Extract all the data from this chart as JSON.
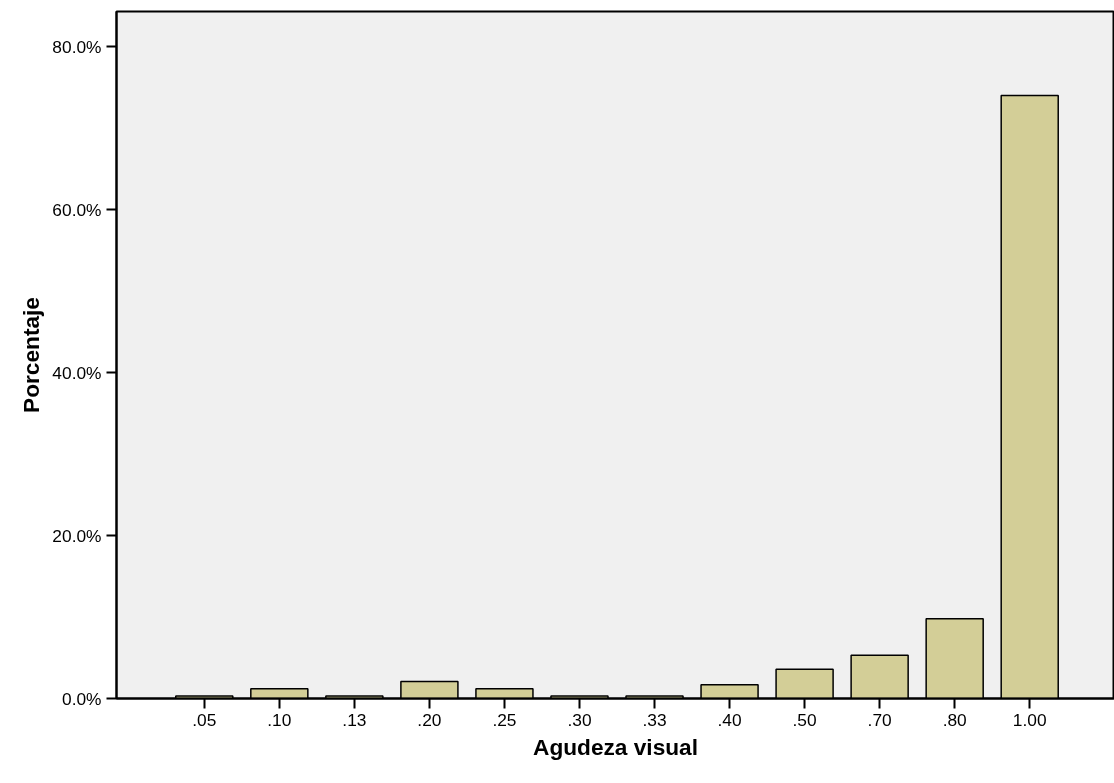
{
  "chart_data": {
    "type": "bar",
    "xlabel": "Agudeza visual",
    "ylabel": "Porcentaje",
    "categories": [
      ".05",
      ".10",
      ".13",
      ".20",
      ".25",
      ".30",
      ".33",
      ".40",
      ".50",
      ".70",
      ".80",
      "1.00"
    ],
    "values": [
      0.3,
      1.2,
      0.3,
      2.1,
      1.2,
      0.3,
      0.3,
      1.7,
      3.6,
      5.3,
      9.8,
      74.0
    ],
    "color": "#d3ce97",
    "ylim": [
      0,
      84.3
    ],
    "yticks": [
      {
        "value": 0,
        "label": "0.0%"
      },
      {
        "value": 20,
        "label": "20.0%"
      },
      {
        "value": 40,
        "label": "40.0%"
      },
      {
        "value": 60,
        "label": "60.0%"
      },
      {
        "value": 80,
        "label": "80.0%"
      }
    ],
    "grid": false
  }
}
